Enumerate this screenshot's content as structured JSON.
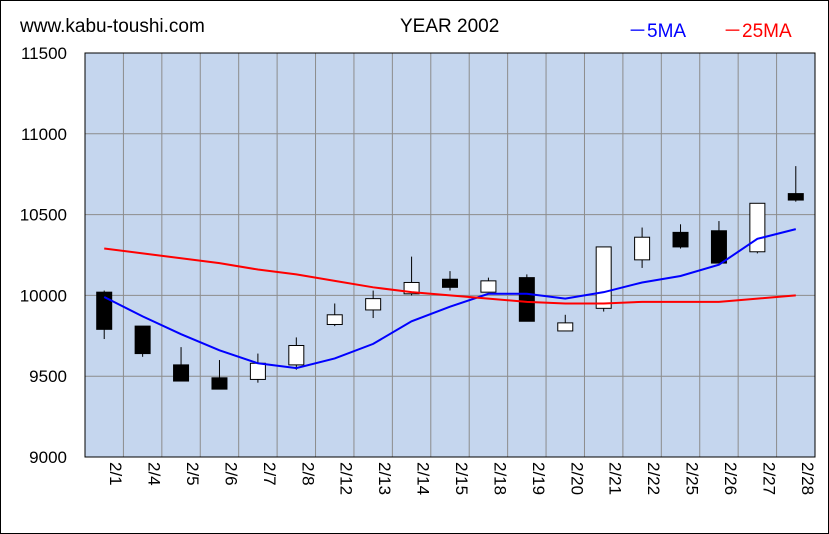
{
  "header": {
    "site": "www.kabu-toushi.com",
    "year": "YEAR 2002",
    "legend_5ma": "－5MA",
    "legend_25ma": "－25MA"
  },
  "colors": {
    "plot_bg": "#c5d6ee",
    "grid": "#8c8c8c",
    "ma5": "#0000ff",
    "ma25": "#ff0000",
    "up_candle": "#ffffff",
    "down_candle": "#000000"
  },
  "chart_data": {
    "type": "candlestick",
    "title": "YEAR 2002",
    "ylim": [
      9000,
      11500
    ],
    "yticks": [
      9000,
      9500,
      10000,
      10500,
      11000,
      11500
    ],
    "grid": true,
    "legend_position": "top-right",
    "categories": [
      "2/1",
      "2/4",
      "2/5",
      "2/6",
      "2/7",
      "2/8",
      "2/12",
      "2/13",
      "2/14",
      "2/15",
      "2/18",
      "2/19",
      "2/20",
      "2/21",
      "2/22",
      "2/25",
      "2/26",
      "2/27",
      "2/28"
    ],
    "candles": [
      {
        "date": "2/1",
        "open": 10020,
        "high": 10030,
        "low": 9730,
        "close": 9790
      },
      {
        "date": "2/4",
        "open": 9810,
        "high": 9810,
        "low": 9620,
        "close": 9640
      },
      {
        "date": "2/5",
        "open": 9570,
        "high": 9680,
        "low": 9470,
        "close": 9470
      },
      {
        "date": "2/6",
        "open": 9490,
        "high": 9600,
        "low": 9420,
        "close": 9420
      },
      {
        "date": "2/7",
        "open": 9480,
        "high": 9640,
        "low": 9460,
        "close": 9580
      },
      {
        "date": "2/8",
        "open": 9570,
        "high": 9740,
        "low": 9540,
        "close": 9690
      },
      {
        "date": "2/12",
        "open": 9820,
        "high": 9950,
        "low": 9810,
        "close": 9880
      },
      {
        "date": "2/13",
        "open": 9910,
        "high": 10030,
        "low": 9860,
        "close": 9980
      },
      {
        "date": "2/14",
        "open": 10010,
        "high": 10240,
        "low": 10000,
        "close": 10080
      },
      {
        "date": "2/15",
        "open": 10100,
        "high": 10150,
        "low": 10030,
        "close": 10050
      },
      {
        "date": "2/18",
        "open": 10020,
        "high": 10110,
        "low": 10020,
        "close": 10090
      },
      {
        "date": "2/19",
        "open": 10110,
        "high": 10130,
        "low": 9840,
        "close": 9840
      },
      {
        "date": "2/20",
        "open": 9780,
        "high": 9880,
        "low": 9780,
        "close": 9830
      },
      {
        "date": "2/21",
        "open": 9920,
        "high": 10300,
        "low": 9900,
        "close": 10300
      },
      {
        "date": "2/22",
        "open": 10220,
        "high": 10420,
        "low": 10170,
        "close": 10360
      },
      {
        "date": "2/25",
        "open": 10390,
        "high": 10440,
        "low": 10290,
        "close": 10300
      },
      {
        "date": "2/26",
        "open": 10400,
        "high": 10460,
        "low": 10200,
        "close": 10200
      },
      {
        "date": "2/27",
        "open": 10270,
        "high": 10570,
        "low": 10260,
        "close": 10570
      },
      {
        "date": "2/28",
        "open": 10630,
        "high": 10800,
        "low": 10580,
        "close": 10590
      }
    ],
    "series": [
      {
        "name": "5MA",
        "values": [
          9990,
          9870,
          9760,
          9660,
          9580,
          9550,
          9610,
          9700,
          9840,
          9930,
          10010,
          10010,
          9980,
          10020,
          10080,
          10120,
          10190,
          10350,
          10410
        ]
      },
      {
        "name": "25MA",
        "values": [
          10290,
          10260,
          10230,
          10200,
          10160,
          10130,
          10090,
          10050,
          10020,
          10000,
          9980,
          9960,
          9950,
          9950,
          9960,
          9960,
          9960,
          9980,
          10000
        ]
      }
    ]
  }
}
